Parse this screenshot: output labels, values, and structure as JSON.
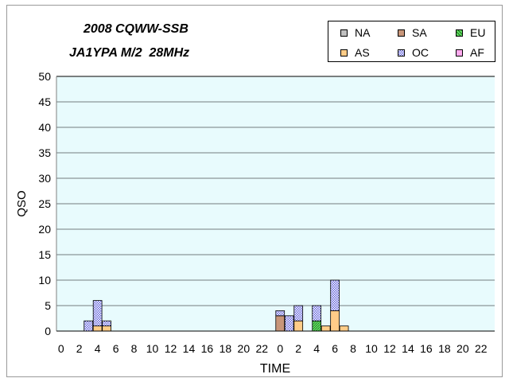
{
  "titles": {
    "line1": "2008 CQWW-SSB",
    "line2": "JA1YPA M/2  28MHz"
  },
  "colors": {
    "plot_background": "#e8fbfd",
    "grid": "#000000",
    "NA": "#c0c0c0",
    "SA": "#c8967a",
    "EU": "#66dd66",
    "AS": "#ffcc88",
    "OC": "#9999ee",
    "AF": "#ffaaee"
  },
  "legend": [
    {
      "name": "NA",
      "color_key": "NA",
      "pattern": "solid"
    },
    {
      "name": "SA",
      "color_key": "SA",
      "pattern": "solid"
    },
    {
      "name": "EU",
      "color_key": "EU",
      "pattern": "hatch"
    },
    {
      "name": "AS",
      "color_key": "AS",
      "pattern": "solid"
    },
    {
      "name": "OC",
      "color_key": "OC",
      "pattern": "dots"
    },
    {
      "name": "AF",
      "color_key": "AF",
      "pattern": "solid"
    }
  ],
  "chart_data": {
    "type": "bar",
    "stacked": true,
    "title": "2008 CQWW-SSB",
    "subtitle": "JA1YPA M/2  28MHz",
    "xlabel": "TIME",
    "ylabel": "QSO",
    "ylim": [
      0,
      50
    ],
    "y_ticks": [
      0,
      5,
      10,
      15,
      20,
      25,
      30,
      35,
      40,
      45,
      50
    ],
    "grid": true,
    "legend_position": "top-right",
    "categories": [
      "0",
      "1",
      "2",
      "3",
      "4",
      "5",
      "6",
      "7",
      "8",
      "9",
      "10",
      "11",
      "12",
      "13",
      "14",
      "15",
      "16",
      "17",
      "18",
      "19",
      "20",
      "21",
      "22",
      "23",
      "0",
      "1",
      "2",
      "3",
      "4",
      "5",
      "6",
      "7",
      "8",
      "9",
      "10",
      "11",
      "12",
      "13",
      "14",
      "15",
      "16",
      "17",
      "18",
      "19",
      "20",
      "21",
      "22",
      "23"
    ],
    "x_tick_labels": [
      "0",
      "2",
      "4",
      "6",
      "8",
      "10",
      "12",
      "14",
      "16",
      "18",
      "20",
      "22",
      "0",
      "2",
      "4",
      "6",
      "8",
      "10",
      "12",
      "14",
      "16",
      "18",
      "20",
      "22"
    ],
    "series": [
      {
        "name": "NA",
        "values": [
          0,
          0,
          0,
          0,
          0,
          0,
          0,
          0,
          0,
          0,
          0,
          0,
          0,
          0,
          0,
          0,
          0,
          0,
          0,
          0,
          0,
          0,
          0,
          0,
          0,
          0,
          0,
          0,
          0,
          0,
          0,
          0,
          0,
          0,
          0,
          0,
          0,
          0,
          0,
          0,
          0,
          0,
          0,
          0,
          0,
          0,
          0,
          0
        ]
      },
      {
        "name": "SA",
        "values": [
          0,
          0,
          0,
          0,
          0,
          0,
          0,
          0,
          0,
          0,
          0,
          0,
          0,
          0,
          0,
          0,
          0,
          0,
          0,
          0,
          0,
          0,
          0,
          0,
          3,
          0,
          0,
          0,
          0,
          0,
          0,
          0,
          0,
          0,
          0,
          0,
          0,
          0,
          0,
          0,
          0,
          0,
          0,
          0,
          0,
          0,
          0,
          0
        ]
      },
      {
        "name": "EU",
        "values": [
          0,
          0,
          0,
          0,
          0,
          0,
          0,
          0,
          0,
          0,
          0,
          0,
          0,
          0,
          0,
          0,
          0,
          0,
          0,
          0,
          0,
          0,
          0,
          0,
          0,
          0,
          0,
          0,
          2,
          0,
          0,
          0,
          0,
          0,
          0,
          0,
          0,
          0,
          0,
          0,
          0,
          0,
          0,
          0,
          0,
          0,
          0,
          0
        ]
      },
      {
        "name": "AS",
        "values": [
          0,
          0,
          0,
          0,
          1,
          1,
          0,
          0,
          0,
          0,
          0,
          0,
          0,
          0,
          0,
          0,
          0,
          0,
          0,
          0,
          0,
          0,
          0,
          0,
          0,
          0,
          2,
          0,
          0,
          1,
          4,
          1,
          0,
          0,
          0,
          0,
          0,
          0,
          0,
          0,
          0,
          0,
          0,
          0,
          0,
          0,
          0,
          0
        ]
      },
      {
        "name": "OC",
        "values": [
          0,
          0,
          0,
          2,
          5,
          1,
          0,
          0,
          0,
          0,
          0,
          0,
          0,
          0,
          0,
          0,
          0,
          0,
          0,
          0,
          0,
          0,
          0,
          0,
          1,
          3,
          3,
          0,
          3,
          0,
          6,
          0,
          0,
          0,
          0,
          0,
          0,
          0,
          0,
          0,
          0,
          0,
          0,
          0,
          0,
          0,
          0,
          0
        ]
      },
      {
        "name": "AF",
        "values": [
          0,
          0,
          0,
          0,
          0,
          0,
          0,
          0,
          0,
          0,
          0,
          0,
          0,
          0,
          0,
          0,
          0,
          0,
          0,
          0,
          0,
          0,
          0,
          0,
          0,
          0,
          0,
          0,
          0,
          0,
          0,
          0,
          0,
          0,
          0,
          0,
          0,
          0,
          0,
          0,
          0,
          0,
          0,
          0,
          0,
          0,
          0,
          0
        ]
      }
    ]
  }
}
